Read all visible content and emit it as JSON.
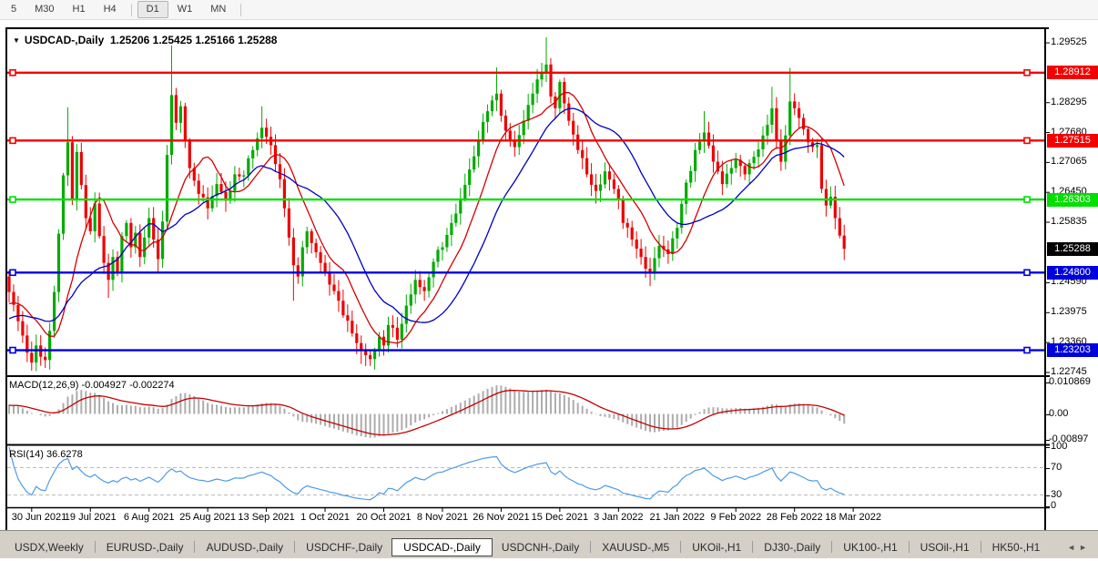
{
  "toolbar": {
    "items": [
      {
        "label": "5",
        "active": false,
        "sep_after": false
      },
      {
        "label": "M30",
        "active": false,
        "sep_after": false
      },
      {
        "label": "H1",
        "active": false,
        "sep_after": false
      },
      {
        "label": "H4",
        "active": false,
        "sep_after": true
      },
      {
        "label": "D1",
        "active": true,
        "sep_after": false
      },
      {
        "label": "W1",
        "active": false,
        "sep_after": false
      },
      {
        "label": "MN",
        "active": false,
        "sep_after": true
      }
    ]
  },
  "chart": {
    "dropdown_icon": "▼",
    "symbol_label": "USDCAD-,Daily",
    "ohlc_label": "1.25206 1.25425 1.25166 1.25288",
    "axis_ticks": [
      {
        "label": "1.29525",
        "price": 1.29525
      },
      {
        "label": "1.28295",
        "price": 1.28295
      },
      {
        "label": "1.27680",
        "price": 1.2768
      },
      {
        "label": "1.27065",
        "price": 1.27065
      },
      {
        "label": "1.26450",
        "price": 1.2645
      },
      {
        "label": "1.25835",
        "price": 1.25835
      },
      {
        "label": "1.24590",
        "price": 1.2459
      },
      {
        "label": "1.23975",
        "price": 1.23975
      },
      {
        "label": "1.23360",
        "price": 1.2336
      },
      {
        "label": "1.22745",
        "price": 1.22745
      }
    ],
    "dates": [
      "30 Jun 2021",
      "19 Jul 2021",
      "6 Aug 2021",
      "25 Aug 2021",
      "13 Sep 2021",
      "1 Oct 2021",
      "20 Oct 2021",
      "8 Nov 2021",
      "26 Nov 2021",
      "15 Dec 2021",
      "3 Jan 2022",
      "21 Jan 2022",
      "9 Feb 2022",
      "28 Feb 2022",
      "18 Mar 2022"
    ]
  },
  "chart_data": {
    "type": "candlestick",
    "symbol": "USDCAD-",
    "timeframe": "Daily",
    "open": 1.25206,
    "high": 1.25425,
    "low": 1.25166,
    "close": 1.25288,
    "price_axis_range": [
      1.22707,
      1.29807
    ],
    "days": 186,
    "hlines": [
      {
        "price": 1.28912,
        "label": "1.28912",
        "color_key": "hline_red"
      },
      {
        "price": 1.27515,
        "label": "1.27515",
        "color_key": "hline_red"
      },
      {
        "price": 1.26303,
        "label": "1.26303",
        "color_key": "hline_green"
      },
      {
        "price": 1.248,
        "label": "1.24800",
        "color_key": "hline_blue"
      },
      {
        "price": 1.23203,
        "label": "1.23203",
        "color_key": "hline_blue"
      }
    ],
    "current_price": {
      "value": 1.25288,
      "label": "1.25288"
    },
    "moving_averages": [
      {
        "name": "fast",
        "period": 10,
        "color_key": "ma_fast"
      },
      {
        "name": "slow",
        "period": 21,
        "color_key": "ma_slow"
      }
    ],
    "anchors": [
      {
        "d": 0,
        "c": 1.244
      },
      {
        "d": 2,
        "c": 1.238
      },
      {
        "d": 4,
        "c": 1.2315
      },
      {
        "d": 5,
        "c": 1.2295,
        "l": 1.228
      },
      {
        "d": 6,
        "c": 1.233
      },
      {
        "d": 8,
        "c": 1.23,
        "l": 1.2285
      },
      {
        "d": 9,
        "c": 1.236
      },
      {
        "d": 10,
        "c": 1.244
      },
      {
        "d": 11,
        "c": 1.256
      },
      {
        "d": 12,
        "c": 1.268
      },
      {
        "d": 13,
        "c": 1.2748,
        "h": 1.282
      },
      {
        "d": 14,
        "c": 1.263
      },
      {
        "d": 15,
        "c": 1.2728
      },
      {
        "d": 16,
        "c": 1.266
      },
      {
        "d": 17,
        "c": 1.2592
      },
      {
        "d": 18,
        "c": 1.2565
      },
      {
        "d": 19,
        "c": 1.2622
      },
      {
        "d": 20,
        "c": 1.2555
      },
      {
        "d": 21,
        "c": 1.25
      },
      {
        "d": 22,
        "c": 1.2465,
        "l": 1.2428
      },
      {
        "d": 23,
        "c": 1.2512
      },
      {
        "d": 24,
        "c": 1.2482
      },
      {
        "d": 25,
        "c": 1.2555
      },
      {
        "d": 26,
        "c": 1.2582
      },
      {
        "d": 27,
        "c": 1.2532
      },
      {
        "d": 28,
        "c": 1.2562
      },
      {
        "d": 29,
        "c": 1.2512
      },
      {
        "d": 30,
        "c": 1.2552
      },
      {
        "d": 31,
        "c": 1.2592
      },
      {
        "d": 32,
        "c": 1.2548
      },
      {
        "d": 33,
        "c": 1.2508,
        "l": 1.2478
      },
      {
        "d": 34,
        "c": 1.2585
      },
      {
        "d": 35,
        "c": 1.2722
      },
      {
        "d": 36,
        "c": 1.2845,
        "h": 1.2947
      },
      {
        "d": 37,
        "c": 1.2788
      },
      {
        "d": 38,
        "c": 1.2822
      },
      {
        "d": 40,
        "c": 1.2695
      },
      {
        "d": 42,
        "c": 1.2642
      },
      {
        "d": 44,
        "c": 1.2612
      },
      {
        "d": 46,
        "c": 1.2662
      },
      {
        "d": 48,
        "c": 1.2628
      },
      {
        "d": 50,
        "c": 1.2682
      },
      {
        "d": 52,
        "c": 1.268
      },
      {
        "d": 54,
        "c": 1.2732
      },
      {
        "d": 56,
        "c": 1.2778,
        "h": 1.2822
      },
      {
        "d": 58,
        "c": 1.2742
      },
      {
        "d": 60,
        "c": 1.2672
      },
      {
        "d": 61,
        "c": 1.2612
      },
      {
        "d": 62,
        "c": 1.2552
      },
      {
        "d": 63,
        "c": 1.2495,
        "l": 1.2422
      },
      {
        "d": 64,
        "c": 1.2472
      },
      {
        "d": 65,
        "c": 1.2532
      },
      {
        "d": 66,
        "c": 1.2565
      },
      {
        "d": 68,
        "c": 1.2522
      },
      {
        "d": 70,
        "c": 1.2482
      },
      {
        "d": 72,
        "c": 1.2442
      },
      {
        "d": 74,
        "c": 1.2392
      },
      {
        "d": 76,
        "c": 1.2355
      },
      {
        "d": 78,
        "c": 1.2322,
        "l": 1.2292
      },
      {
        "d": 80,
        "c": 1.2302,
        "l": 1.2288
      },
      {
        "d": 82,
        "c": 1.2348
      },
      {
        "d": 83,
        "c": 1.233
      },
      {
        "d": 84,
        "c": 1.2372
      },
      {
        "d": 86,
        "c": 1.2342
      },
      {
        "d": 88,
        "c": 1.2412
      },
      {
        "d": 90,
        "c": 1.2465
      },
      {
        "d": 92,
        "c": 1.2442
      },
      {
        "d": 94,
        "c": 1.2502
      },
      {
        "d": 96,
        "c": 1.2532
      },
      {
        "d": 98,
        "c": 1.2582
      },
      {
        "d": 100,
        "c": 1.2632
      },
      {
        "d": 102,
        "c": 1.2692
      },
      {
        "d": 104,
        "c": 1.2752
      },
      {
        "d": 106,
        "c": 1.2812
      },
      {
        "d": 108,
        "c": 1.2848,
        "h": 1.2902
      },
      {
        "d": 110,
        "c": 1.2772
      },
      {
        "d": 112,
        "c": 1.2738
      },
      {
        "d": 114,
        "c": 1.2792
      },
      {
        "d": 116,
        "c": 1.2848
      },
      {
        "d": 118,
        "c": 1.2892
      },
      {
        "d": 119,
        "c": 1.2908,
        "h": 1.2964
      },
      {
        "d": 120,
        "c": 1.2842
      },
      {
        "d": 121,
        "c": 1.2818
      },
      {
        "d": 122,
        "c": 1.2872
      },
      {
        "d": 123,
        "c": 1.2828
      },
      {
        "d": 124,
        "c": 1.2792
      },
      {
        "d": 126,
        "c": 1.2732
      },
      {
        "d": 128,
        "c": 1.2682
      },
      {
        "d": 130,
        "c": 1.2648,
        "l": 1.2622
      },
      {
        "d": 132,
        "c": 1.2688
      },
      {
        "d": 134,
        "c": 1.2652
      },
      {
        "d": 135,
        "c": 1.2632
      },
      {
        "d": 136,
        "c": 1.2582
      },
      {
        "d": 138,
        "c": 1.2548
      },
      {
        "d": 140,
        "c": 1.2512
      },
      {
        "d": 142,
        "c": 1.2482,
        "l": 1.2452
      },
      {
        "d": 144,
        "c": 1.2535
      },
      {
        "d": 146,
        "c": 1.2518
      },
      {
        "d": 148,
        "c": 1.2572
      },
      {
        "d": 150,
        "c": 1.2665
      },
      {
        "d": 152,
        "c": 1.2732
      },
      {
        "d": 154,
        "c": 1.2768,
        "h": 1.2812
      },
      {
        "d": 156,
        "c": 1.2708
      },
      {
        "d": 158,
        "c": 1.2662
      },
      {
        "d": 160,
        "c": 1.2695
      },
      {
        "d": 161,
        "c": 1.2712
      },
      {
        "d": 163,
        "c": 1.2682
      },
      {
        "d": 165,
        "c": 1.2718
      },
      {
        "d": 167,
        "c": 1.2762
      },
      {
        "d": 169,
        "c": 1.2818,
        "h": 1.2862
      },
      {
        "d": 170,
        "c": 1.2752
      },
      {
        "d": 171,
        "c": 1.2708
      },
      {
        "d": 172,
        "c": 1.2762
      },
      {
        "d": 173,
        "c": 1.2832,
        "h": 1.2901
      },
      {
        "d": 174,
        "c": 1.2818
      },
      {
        "d": 175,
        "c": 1.2798
      },
      {
        "d": 176,
        "c": 1.2775
      },
      {
        "d": 177,
        "c": 1.2748
      },
      {
        "d": 178,
        "c": 1.2738
      },
      {
        "d": 179,
        "c": 1.2742
      },
      {
        "d": 180,
        "c": 1.2652
      },
      {
        "d": 181,
        "c": 1.2618,
        "l": 1.26
      },
      {
        "d": 182,
        "c": 1.2636
      },
      {
        "d": 183,
        "c": 1.2592
      },
      {
        "d": 184,
        "c": 1.2556
      },
      {
        "d": 185,
        "c": 1.25288,
        "l": 1.2508
      }
    ]
  },
  "indicators": {
    "macd": {
      "label": "MACD(12,26,9) -0.004927 -0.002274",
      "params": [
        12,
        26,
        9
      ],
      "value_main": -0.004927,
      "value_signal": -0.002274,
      "axis_ticks": [
        {
          "label": "0.010869",
          "v": 0.010869
        },
        {
          "label": "0.00",
          "v": 0
        },
        {
          "label": "-0.00897",
          "v": -0.00897
        }
      ]
    },
    "rsi": {
      "label": "RSI(14) 36.6278",
      "period": 14,
      "value": 36.6278,
      "levels": [
        70,
        30
      ],
      "axis_ticks": [
        {
          "label": "100",
          "v": 100
        },
        {
          "label": "70",
          "v": 70
        },
        {
          "label": "30",
          "v": 30
        },
        {
          "label": "0",
          "v": 0
        }
      ]
    }
  },
  "tabs": {
    "items": [
      {
        "label": "USDX,Weekly",
        "active": false
      },
      {
        "label": "EURUSD-,Daily",
        "active": false
      },
      {
        "label": "AUDUSD-,Daily",
        "active": false
      },
      {
        "label": "USDCHF-,Daily",
        "active": false
      },
      {
        "label": "USDCAD-,Daily",
        "active": true
      },
      {
        "label": "USDCNH-,Daily",
        "active": false
      },
      {
        "label": "XAUUSD-,M5",
        "active": false
      },
      {
        "label": "UKOil-,H1",
        "active": false
      },
      {
        "label": "DJ30-,Daily",
        "active": false
      },
      {
        "label": "UK100-,H1",
        "active": false
      },
      {
        "label": "USOil-,H1",
        "active": false
      },
      {
        "label": "HK50-,H1",
        "active": false
      }
    ],
    "scroll_left_icon": "◄",
    "scroll_right_icon": "►"
  },
  "colors": {
    "up": "#00AB00",
    "down": "#EE0000",
    "hline_red": "#F40000",
    "hline_green": "#00DF00",
    "hline_blue": "#0000DC",
    "current_badge": "#000000",
    "badge_text": "#FFFFFF",
    "ma_fast": "#D40000",
    "ma_slow": "#0000BE",
    "macd_hist": "#ACACAC",
    "macd_signal": "#C40000",
    "rsi_line": "#4C9BE8",
    "rsi_level_dash": "#BBBBBB"
  }
}
